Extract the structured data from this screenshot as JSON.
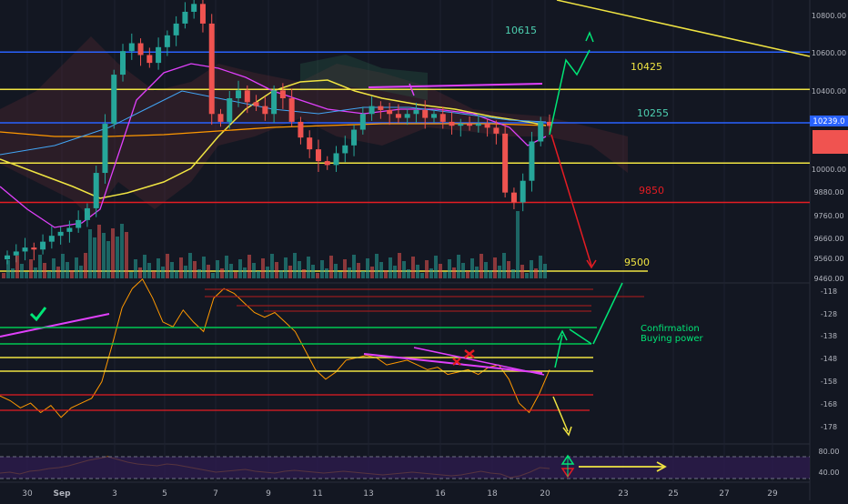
{
  "colors": {
    "background": "#131722",
    "grid": "#1e2230",
    "up": "#26a69a",
    "down": "#ef5350",
    "yellow": "#f0e442",
    "blue": "#2962ff",
    "red": "#e51c23",
    "green": "#00e676",
    "magenta": "#e040fb",
    "orange": "#ff9800",
    "purple_band": "#2d1b4d",
    "axis_text": "#b2b5be"
  },
  "chart_data": [
    {
      "type": "candlestick",
      "panel": "price",
      "x_ticks": [
        "30",
        "Sep",
        "3",
        "5",
        "7",
        "9",
        "11",
        "13",
        "16",
        "18",
        "20",
        "23",
        "25",
        "27",
        "29"
      ],
      "y_ticks": [
        "10800.00",
        "10600.00",
        "10400.00",
        "10000.00",
        "9880.00",
        "9760.00",
        "9660.00",
        "9560.00",
        "9460.00"
      ],
      "current_price_label": "10239.0",
      "ylim": [
        9440,
        10880
      ],
      "horizontal_levels": [
        {
          "value": 10615,
          "label": "10615",
          "label_color": "#4dd0b1",
          "line_color": "#2962ff"
        },
        {
          "value": 10425,
          "label": "10425",
          "label_color": "#f0e442",
          "line_color": "#f0e442"
        },
        {
          "value": 10255,
          "label": "10255",
          "label_color": "#4dd0b1",
          "line_color": "#2962ff"
        },
        {
          "value": 10050,
          "label": "",
          "label_color": "#f0e442",
          "line_color": "#f0e442"
        },
        {
          "value": 9850,
          "label": "9850",
          "label_color": "#e51c23",
          "line_color": "#e51c23"
        },
        {
          "value": 9500,
          "label": "9500",
          "label_color": "#f0e442",
          "line_color": "#f0e442"
        }
      ],
      "close_series": [
        9580,
        9600,
        9620,
        9610,
        9650,
        9680,
        9700,
        9720,
        9760,
        9820,
        10000,
        10250,
        10500,
        10620,
        10660,
        10600,
        10560,
        10640,
        10700,
        10760,
        10820,
        10860,
        10760,
        10300,
        10260,
        10380,
        10420,
        10360,
        10340,
        10300,
        10420,
        10380,
        10260,
        10180,
        10120,
        10060,
        10040,
        10100,
        10140,
        10220,
        10300,
        10340,
        10320,
        10300,
        10280,
        10300,
        10320,
        10280,
        10300,
        10260,
        10240,
        10250,
        10240,
        10250,
        10230,
        10200,
        9900,
        9850,
        9960,
        10160,
        10260,
        10239
      ]
    },
    {
      "type": "line",
      "panel": "oscillator",
      "y_ticks": [
        "-118",
        "-128",
        "-138",
        "-148",
        "-158",
        "-168",
        "-178"
      ],
      "ylim": [
        -180,
        -114
      ],
      "annotations": [
        "Confirmation",
        "Buying power"
      ],
      "series": [
        {
          "values": [
            -161,
            -163,
            -166,
            -164,
            -168,
            -165,
            -170,
            -166,
            -164,
            -162,
            -155,
            -140,
            -124,
            -116,
            -112,
            -120,
            -130,
            -132,
            -125,
            -130,
            -134,
            -120,
            -116,
            -118,
            -122,
            -126,
            -128,
            -126,
            -130,
            -134,
            -142,
            -150,
            -154,
            -151,
            -146,
            -145,
            -144,
            -145,
            -148,
            -147,
            -146,
            -148,
            -150,
            -149,
            -152,
            -151,
            -150,
            -152,
            -149,
            -148,
            -154,
            -164,
            -168,
            -160,
            -150
          ]
        }
      ]
    },
    {
      "type": "line",
      "panel": "rsi",
      "y_ticks": [
        "80.00",
        "40.00"
      ],
      "ylim": [
        20,
        100
      ],
      "series": [
        {
          "values": [
            40,
            42,
            38,
            44,
            46,
            50,
            52,
            56,
            62,
            68,
            72,
            76,
            70,
            64,
            60,
            58,
            56,
            60,
            58,
            54,
            50,
            46,
            42,
            44,
            46,
            48,
            44,
            42,
            40,
            44,
            46,
            44,
            42,
            40,
            42,
            44,
            42,
            40,
            38,
            36,
            38,
            40,
            42,
            40,
            38,
            36,
            34,
            36,
            40,
            44,
            40,
            38,
            30,
            34,
            42,
            52,
            50
          ]
        }
      ]
    }
  ]
}
